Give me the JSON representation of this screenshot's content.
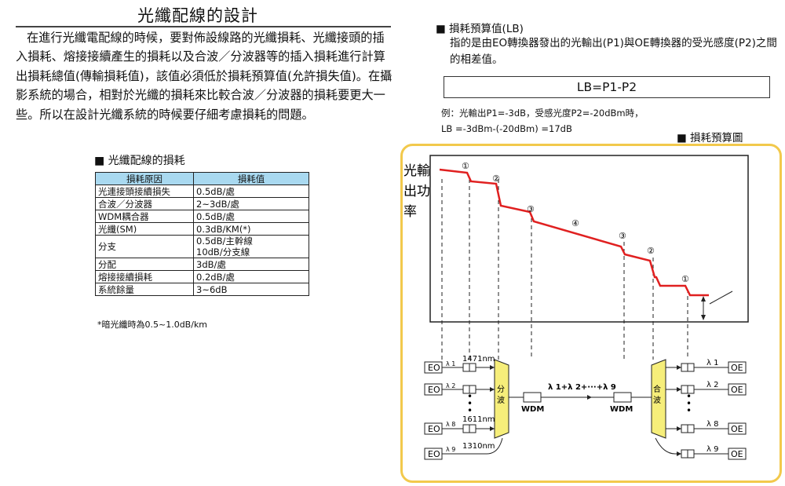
{
  "left": {
    "title": "光纖配線的設計",
    "paragraph": "在進行光纖電配線的時候，要對佈設線路的光纖損耗、光纖接頭的插入損耗、熔接接續產生的損耗以及合波／分波器等的插入損耗進行計算出損耗總值(傳輸損耗值)，該值必須低於損耗預算值(允許損失值)。在攝影系統的場合，相對於光纖的損耗來比較合波／分波器的損耗要更大一些。所以在設計光纖系統的時候要仔細考慮損耗的問題。",
    "table_caption": "■ 光纖配線的損耗",
    "table": {
      "headers": [
        "損耗原因",
        "損耗值"
      ],
      "rows": [
        [
          "光連接頭接續損失",
          "0.5dB/處"
        ],
        [
          "合波／分波器",
          "2~3dB/處"
        ],
        [
          "WDM耦合器",
          "0.5dB/處"
        ],
        [
          "光纖(SM)",
          "0.3dB/KM(*)"
        ],
        [
          "分支",
          "0.5dB/主幹線\n10dB/分支線"
        ],
        [
          "分配",
          "3dB/處"
        ],
        [
          "熔接接續損耗",
          "0.2dB/處"
        ],
        [
          "系統餘量",
          "3~6dB"
        ]
      ]
    },
    "table_note": "*暗光纖時為0.5~1.0dB/km"
  },
  "right": {
    "lb_heading": "■ 損耗預算值(LB)",
    "lb_desc": "指的是由EO轉換器發出的光輸出(P1)與OE轉換器的受光感度(P2)之間的相差值。",
    "formula": "LB=P1-P2",
    "example_line1": "例：光輸出P1=-3dB，受感光度P2=-20dBm時，",
    "example_line2": "LB =-3dBm-(-20dBm) =17dB",
    "diagram_caption": "■ 損耗預算圖"
  },
  "diagram": {
    "y_label": "光輸出功率",
    "markers": [
      "①",
      "②",
      "③",
      "④",
      "③",
      "②",
      "①"
    ],
    "eo_label": "EO",
    "oe_label": "OE",
    "left_lambdas": [
      "λ 1",
      "λ 2",
      "λ 8",
      "λ 9"
    ],
    "left_wavelengths": [
      "1471nm",
      "1611nm",
      "1310nm"
    ],
    "right_lambdas": [
      "λ 1",
      "λ 2",
      "λ 8",
      "λ 9"
    ],
    "demux_label": "分波",
    "mux_label": "合波",
    "wdm_label": "WDM",
    "channel_label": "λ 1+λ 2+···+λ 9",
    "ellipsis": "•\n•\n•",
    "colors": {
      "border": "#f2c94c",
      "curve": "#e02020",
      "mux_fill": "#f6ee7a"
    }
  }
}
